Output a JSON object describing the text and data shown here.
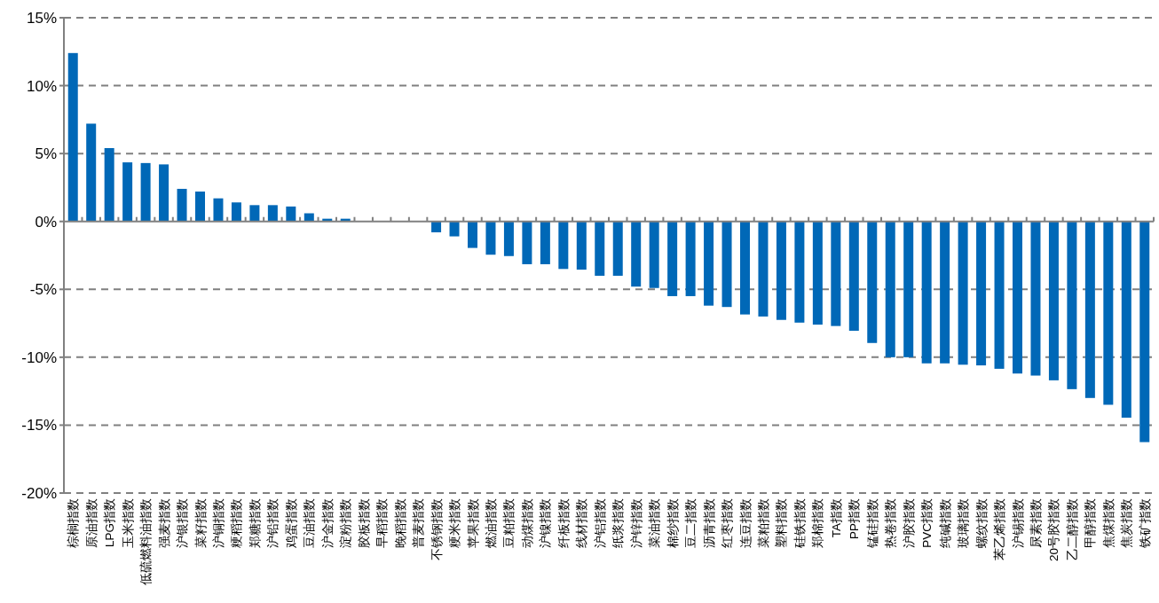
{
  "chart_data": {
    "type": "bar",
    "categories": [
      "棕榈指数",
      "原油指数",
      "LPG指数",
      "玉米指数",
      "低硫燃料油指数",
      "强麦指数",
      "沪银指数",
      "菜籽指数",
      "沪铜指数",
      "粳稻指数",
      "郑糖指数",
      "沪铅指数",
      "鸡蛋指数",
      "豆油指数",
      "沪金指数",
      "淀粉指数",
      "胶板指数",
      "早稻指数",
      "晚稻指数",
      "普麦指数",
      "不锈钢指数",
      "粳米指数",
      "苹果指数",
      "燃油指数",
      "豆粕指数",
      "动煤指数",
      "沪镍指数",
      "纤板指数",
      "线材指数",
      "沪铝指数",
      "纸浆指数",
      "沪锌指数",
      "菜油指数",
      "棉纱指数",
      "豆二指数",
      "沥青指数",
      "红枣指数",
      "连豆指数",
      "菜粕指数",
      "塑料指数",
      "硅铁指数",
      "郑棉指数",
      "TA指数",
      "PP指数",
      "锰硅指数",
      "热卷指数",
      "沪胶指数",
      "PVC指数",
      "纯碱指数",
      "玻璃指数",
      "螺纹指数",
      "苯乙烯指数",
      "沪锡指数",
      "尿素指数",
      "20号胶指数",
      "乙二醇指数",
      "甲醇指数",
      "焦煤指数",
      "焦炭指数",
      "铁矿指数"
    ],
    "values": [
      12.4,
      7.2,
      5.4,
      4.35,
      4.3,
      4.2,
      2.4,
      2.2,
      1.7,
      1.4,
      1.2,
      1.2,
      1.1,
      0.6,
      0.2,
      0.2,
      0,
      0,
      0,
      0,
      -0.8,
      -1.1,
      -1.95,
      -2.45,
      -2.55,
      -3.15,
      -3.15,
      -3.5,
      -3.55,
      -4.0,
      -4.0,
      -4.8,
      -4.9,
      -5.5,
      -5.5,
      -6.2,
      -6.3,
      -6.85,
      -7.0,
      -7.25,
      -7.45,
      -7.6,
      -7.7,
      -8.05,
      -8.95,
      -10.0,
      -10.0,
      -10.45,
      -10.45,
      -10.55,
      -10.6,
      -10.85,
      -11.2,
      -11.35,
      -11.7,
      -12.35,
      -13.0,
      -13.5,
      -14.45,
      -16.25
    ],
    "color": "#0068b7",
    "ylim": [
      -20,
      15
    ],
    "yticks": [
      {
        "value": -20,
        "label": "-20%"
      },
      {
        "value": -15,
        "label": "-15%"
      },
      {
        "value": -10,
        "label": "-10%"
      },
      {
        "value": -5,
        "label": "-5%"
      },
      {
        "value": 0,
        "label": "0%"
      },
      {
        "value": 5,
        "label": "5%"
      },
      {
        "value": 10,
        "label": "10%"
      },
      {
        "value": 15,
        "label": "15%"
      }
    ],
    "grid": "y"
  }
}
